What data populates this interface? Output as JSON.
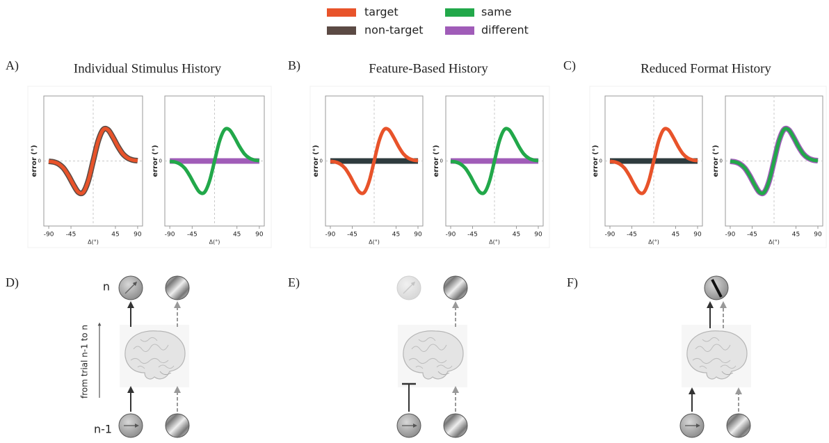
{
  "panels": [
    {
      "label": "A)",
      "title": "Individual Stimulus History"
    },
    {
      "label": "B)",
      "title": "Feature-Based History"
    },
    {
      "label": "C)",
      "title": "Reduced Format History"
    }
  ],
  "diagrams": [
    {
      "label": "D)",
      "top_label": "n",
      "bottom_label": "n-1",
      "axis_label": "from trial n-1 to n"
    },
    {
      "label": "E)"
    },
    {
      "label": "F)"
    }
  ],
  "chart_data": [
    {
      "type": "line",
      "x_label": "Δ(°)",
      "y_label": "error (°)",
      "x": [
        -90,
        -80,
        -70,
        -60,
        -50,
        -40,
        -30,
        -20,
        -10,
        0,
        10,
        20,
        30,
        40,
        50,
        60,
        70,
        80,
        90
      ],
      "xlim": [
        -100,
        100
      ],
      "ylim": [
        -2,
        2
      ],
      "xticks": [
        -90,
        -45,
        45,
        90
      ],
      "yticks": [
        0
      ],
      "series": [
        {
          "name": "target",
          "color": "#e8532a",
          "values": [
            -0.01,
            -0.03,
            -0.09,
            -0.22,
            -0.45,
            -0.73,
            -0.96,
            -0.96,
            -0.61,
            0,
            0.61,
            0.96,
            0.96,
            0.73,
            0.45,
            0.22,
            0.09,
            0.03,
            0.01
          ]
        },
        {
          "name": "non-target",
          "color": "#5b4a44",
          "values": [
            -0.01,
            -0.03,
            -0.09,
            -0.22,
            -0.45,
            -0.73,
            -0.96,
            -0.96,
            -0.61,
            0,
            0.61,
            0.96,
            0.96,
            0.73,
            0.45,
            0.22,
            0.09,
            0.03,
            0.01
          ]
        }
      ]
    },
    {
      "type": "line",
      "x_label": "Δ(°)",
      "y_label": "error (°)",
      "x": [
        -90,
        -80,
        -70,
        -60,
        -50,
        -40,
        -30,
        -20,
        -10,
        0,
        10,
        20,
        30,
        40,
        50,
        60,
        70,
        80,
        90
      ],
      "xlim": [
        -100,
        100
      ],
      "ylim": [
        -2,
        2
      ],
      "xticks": [
        -90,
        -45,
        45,
        90
      ],
      "yticks": [
        0
      ],
      "series": [
        {
          "name": "same",
          "color": "#22a84a",
          "values": [
            -0.01,
            -0.03,
            -0.09,
            -0.22,
            -0.45,
            -0.73,
            -0.96,
            -0.96,
            -0.61,
            0,
            0.61,
            0.96,
            0.96,
            0.73,
            0.45,
            0.22,
            0.09,
            0.03,
            0.01
          ]
        },
        {
          "name": "different",
          "color": "#a05cb8",
          "values": [
            0,
            0,
            0,
            0,
            0,
            0,
            0,
            0,
            0,
            0,
            0,
            0,
            0,
            0,
            0,
            0,
            0,
            0,
            0
          ]
        }
      ]
    },
    {
      "type": "line",
      "x_label": "Δ(°)",
      "y_label": "error (°)",
      "x": [
        -90,
        -80,
        -70,
        -60,
        -50,
        -40,
        -30,
        -20,
        -10,
        0,
        10,
        20,
        30,
        40,
        50,
        60,
        70,
        80,
        90
      ],
      "xlim": [
        -100,
        100
      ],
      "ylim": [
        -2,
        2
      ],
      "xticks": [
        -90,
        -45,
        45,
        90
      ],
      "yticks": [
        0
      ],
      "series": [
        {
          "name": "target",
          "color": "#e8532a",
          "values": [
            -0.01,
            -0.03,
            -0.09,
            -0.22,
            -0.45,
            -0.73,
            -0.96,
            -0.96,
            -0.61,
            0,
            0.61,
            0.96,
            0.96,
            0.73,
            0.45,
            0.22,
            0.09,
            0.03,
            0.01
          ]
        },
        {
          "name": "non-target",
          "color": "#2e3b3e",
          "values": [
            0,
            0,
            0,
            0,
            0,
            0,
            0,
            0,
            0,
            0,
            0,
            0,
            0,
            0,
            0,
            0,
            0,
            0,
            0
          ]
        }
      ]
    },
    {
      "type": "line",
      "x_label": "Δ(°)",
      "y_label": "error (°)",
      "x": [
        -90,
        -80,
        -70,
        -60,
        -50,
        -40,
        -30,
        -20,
        -10,
        0,
        10,
        20,
        30,
        40,
        50,
        60,
        70,
        80,
        90
      ],
      "xlim": [
        -100,
        100
      ],
      "ylim": [
        -2,
        2
      ],
      "xticks": [
        -90,
        -45,
        45,
        90
      ],
      "yticks": [
        0
      ],
      "series": [
        {
          "name": "same",
          "color": "#22a84a",
          "values": [
            -0.01,
            -0.03,
            -0.09,
            -0.22,
            -0.45,
            -0.73,
            -0.96,
            -0.96,
            -0.61,
            0,
            0.61,
            0.96,
            0.96,
            0.73,
            0.45,
            0.22,
            0.09,
            0.03,
            0.01
          ]
        },
        {
          "name": "different",
          "color": "#a05cb8",
          "values": [
            0,
            0,
            0,
            0,
            0,
            0,
            0,
            0,
            0,
            0,
            0,
            0,
            0,
            0,
            0,
            0,
            0,
            0,
            0
          ]
        }
      ]
    },
    {
      "type": "line",
      "x_label": "Δ(°)",
      "y_label": "error (°)",
      "x": [
        -90,
        -80,
        -70,
        -60,
        -50,
        -40,
        -30,
        -20,
        -10,
        0,
        10,
        20,
        30,
        40,
        50,
        60,
        70,
        80,
        90
      ],
      "xlim": [
        -100,
        100
      ],
      "ylim": [
        -2,
        2
      ],
      "xticks": [
        -90,
        -45,
        45,
        90
      ],
      "yticks": [
        0
      ],
      "series": [
        {
          "name": "target",
          "color": "#e8532a",
          "values": [
            -0.01,
            -0.03,
            -0.09,
            -0.22,
            -0.45,
            -0.73,
            -0.96,
            -0.96,
            -0.61,
            0,
            0.61,
            0.96,
            0.96,
            0.73,
            0.45,
            0.22,
            0.09,
            0.03,
            0.01
          ]
        },
        {
          "name": "non-target",
          "color": "#2e3b3e",
          "values": [
            0,
            0,
            0,
            0,
            0,
            0,
            0,
            0,
            0,
            0,
            0,
            0,
            0,
            0,
            0,
            0,
            0,
            0,
            0
          ]
        }
      ]
    },
    {
      "type": "line",
      "x_label": "Δ(°)",
      "y_label": "error (°)",
      "x": [
        -90,
        -80,
        -70,
        -60,
        -50,
        -40,
        -30,
        -20,
        -10,
        0,
        10,
        20,
        30,
        40,
        50,
        60,
        70,
        80,
        90
      ],
      "xlim": [
        -100,
        100
      ],
      "ylim": [
        -2,
        2
      ],
      "xticks": [
        -90,
        -45,
        45,
        90
      ],
      "yticks": [
        0
      ],
      "series": [
        {
          "name": "same",
          "color": "#22a84a",
          "values": [
            -0.01,
            -0.03,
            -0.09,
            -0.22,
            -0.45,
            -0.73,
            -0.96,
            -0.96,
            -0.61,
            0,
            0.61,
            0.96,
            0.96,
            0.73,
            0.45,
            0.22,
            0.09,
            0.03,
            0.01
          ]
        },
        {
          "name": "different",
          "color": "#a05cb8",
          "values": [
            -0.01,
            -0.03,
            -0.09,
            -0.22,
            -0.45,
            -0.73,
            -0.96,
            -0.96,
            -0.61,
            0,
            0.61,
            0.96,
            0.96,
            0.73,
            0.45,
            0.22,
            0.09,
            0.03,
            0.01
          ]
        }
      ]
    }
  ]
}
